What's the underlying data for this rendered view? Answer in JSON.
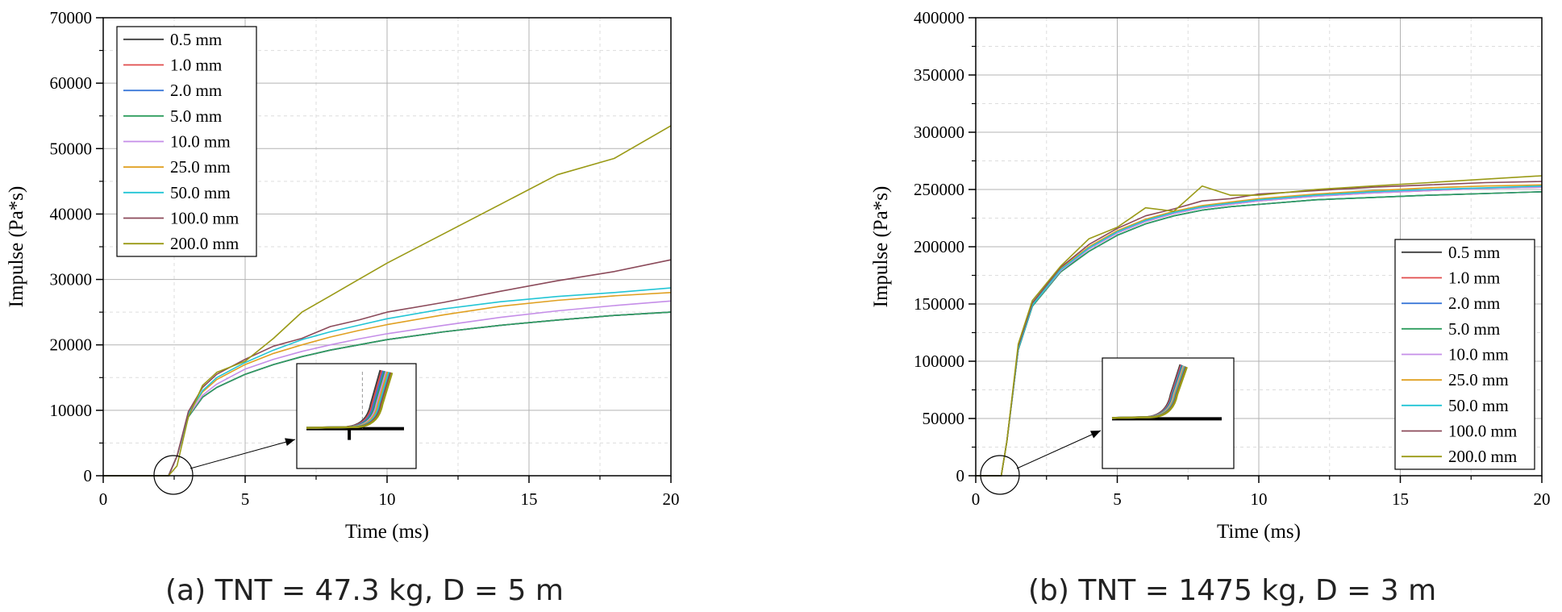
{
  "figure": {
    "caption_a": "(a) TNT = 47.3 kg, D = 5 m",
    "caption_b": "(b) TNT = 1475 kg, D = 3 m"
  },
  "chart_data": [
    {
      "type": "line",
      "panel": "a",
      "xlabel": "Time (ms)",
      "ylabel": "Impulse (Pa*s)",
      "xlim": [
        0,
        20
      ],
      "ylim": [
        0,
        70000
      ],
      "xticks": [
        0,
        5,
        10,
        15,
        20
      ],
      "yticks": [
        0,
        10000,
        20000,
        30000,
        40000,
        50000,
        60000,
        70000
      ],
      "grid": true,
      "legend_position": "top-left",
      "inset": "zoom of curve onset near t = 2.5 ms",
      "x": [
        0,
        2.3,
        2.6,
        3,
        3.5,
        4,
        5,
        6,
        7,
        8,
        9,
        10,
        12,
        14,
        16,
        18,
        20
      ],
      "series": [
        {
          "name": "0.5 mm",
          "color": "#3d3d3d",
          "values": [
            0,
            0,
            3000,
            9000,
            12000,
            13500,
            15500,
            17000,
            18200,
            19200,
            20000,
            20800,
            22000,
            23000,
            23800,
            24500,
            25000
          ]
        },
        {
          "name": "1.0 mm",
          "color": "#e04b4b",
          "values": [
            0,
            0,
            3000,
            9000,
            12000,
            13500,
            15500,
            17000,
            18200,
            19200,
            20000,
            20800,
            22000,
            23000,
            23800,
            24500,
            25000
          ]
        },
        {
          "name": "2.0 mm",
          "color": "#3c78d8",
          "values": [
            0,
            0,
            3000,
            9000,
            12000,
            13500,
            15500,
            17000,
            18200,
            19200,
            20000,
            20800,
            22000,
            23000,
            23800,
            24500,
            25000
          ]
        },
        {
          "name": "5.0 mm",
          "color": "#2e9d5e",
          "values": [
            0,
            0,
            3000,
            9000,
            12000,
            13500,
            15500,
            17000,
            18200,
            19200,
            20000,
            20800,
            22000,
            23000,
            23800,
            24500,
            25000
          ]
        },
        {
          "name": "10.0 mm",
          "color": "#c58ee8",
          "values": [
            0,
            0,
            3000,
            9200,
            12300,
            14000,
            16300,
            17800,
            19000,
            20000,
            20900,
            21700,
            23000,
            24200,
            25200,
            26000,
            26700
          ]
        },
        {
          "name": "25.0 mm",
          "color": "#e0a021",
          "values": [
            0,
            0,
            3000,
            9500,
            12800,
            14700,
            17000,
            18700,
            20000,
            21200,
            22200,
            23100,
            24600,
            25900,
            26800,
            27500,
            28000
          ]
        },
        {
          "name": "50.0 mm",
          "color": "#22c5d5",
          "values": [
            0,
            0,
            3000,
            9500,
            13000,
            15000,
            17300,
            19200,
            20800,
            22000,
            23000,
            24000,
            25500,
            26600,
            27400,
            28000,
            28700
          ]
        },
        {
          "name": "100.0 mm",
          "color": "#8b4a5a",
          "values": [
            0,
            0,
            3000,
            9800,
            13500,
            15500,
            17800,
            19800,
            21000,
            22800,
            23800,
            25000,
            26500,
            28200,
            29800,
            31200,
            33000
          ]
        },
        {
          "name": "200.0 mm",
          "color": "#9a9a16",
          "values": [
            0,
            0,
            1500,
            9000,
            13800,
            15800,
            17500,
            21000,
            25000,
            27500,
            30000,
            32500,
            37000,
            41500,
            46000,
            48500,
            53500
          ]
        }
      ]
    },
    {
      "type": "line",
      "panel": "b",
      "xlabel": "Time (ms)",
      "ylabel": "Impulse (Pa*s)",
      "xlim": [
        0,
        20
      ],
      "ylim": [
        0,
        400000
      ],
      "xticks": [
        0,
        5,
        10,
        15,
        20
      ],
      "yticks": [
        0,
        50000,
        100000,
        150000,
        200000,
        250000,
        300000,
        350000,
        400000
      ],
      "grid": true,
      "legend_position": "bottom-right",
      "inset": "zoom of curve onset near t = 1 ms",
      "x": [
        0,
        0.9,
        1.1,
        1.5,
        2,
        3,
        4,
        5,
        6,
        7,
        8,
        9,
        10,
        12,
        14,
        16,
        18,
        20
      ],
      "series": [
        {
          "name": "0.5 mm",
          "color": "#3d3d3d",
          "values": [
            0,
            0,
            30000,
            110000,
            148000,
            178000,
            196000,
            210000,
            220000,
            227000,
            232000,
            235000,
            237000,
            241000,
            243000,
            245000,
            246500,
            248000
          ]
        },
        {
          "name": "1.0 mm",
          "color": "#e04b4b",
          "values": [
            0,
            0,
            30000,
            111000,
            149000,
            179000,
            198000,
            212000,
            222000,
            229000,
            234000,
            237000,
            240000,
            244000,
            247000,
            249000,
            251000,
            252000
          ]
        },
        {
          "name": "2.0 mm",
          "color": "#3c78d8",
          "values": [
            0,
            0,
            30000,
            110000,
            148000,
            178000,
            196000,
            210000,
            220000,
            227000,
            232000,
            235000,
            237000,
            241000,
            243000,
            245000,
            246500,
            248000
          ]
        },
        {
          "name": "5.0 mm",
          "color": "#2e9d5e",
          "values": [
            0,
            0,
            30000,
            110000,
            148000,
            178000,
            196000,
            210000,
            220000,
            227000,
            232000,
            235000,
            237000,
            241000,
            243000,
            245000,
            246500,
            248000
          ]
        },
        {
          "name": "10.0 mm",
          "color": "#c58ee8",
          "values": [
            0,
            0,
            30000,
            111000,
            149000,
            179000,
            198000,
            212000,
            222000,
            229000,
            234000,
            237000,
            240000,
            244000,
            247000,
            249000,
            251000,
            252000
          ]
        },
        {
          "name": "25.0 mm",
          "color": "#e0a021",
          "values": [
            0,
            0,
            30000,
            112000,
            150000,
            181000,
            200000,
            214000,
            224000,
            231000,
            236000,
            239000,
            242000,
            246000,
            249000,
            251500,
            253000,
            254000
          ]
        },
        {
          "name": "50.0 mm",
          "color": "#22c5d5",
          "values": [
            0,
            0,
            30000,
            111000,
            149000,
            180000,
            199000,
            213000,
            223000,
            230000,
            235000,
            238000,
            241000,
            245000,
            248000,
            250000,
            251500,
            253000
          ]
        },
        {
          "name": "100.0 mm",
          "color": "#8b4a5a",
          "values": [
            0,
            0,
            30000,
            113000,
            151000,
            182000,
            202000,
            216000,
            227000,
            233000,
            240000,
            242000,
            246000,
            249000,
            252000,
            254000,
            256000,
            257000
          ]
        },
        {
          "name": "200.0 mm",
          "color": "#9a9a16",
          "values": [
            0,
            0,
            30000,
            115000,
            153000,
            183000,
            207000,
            217000,
            234000,
            231000,
            253000,
            245000,
            245000,
            250000,
            253000,
            256000,
            259000,
            262000
          ]
        }
      ]
    }
  ]
}
